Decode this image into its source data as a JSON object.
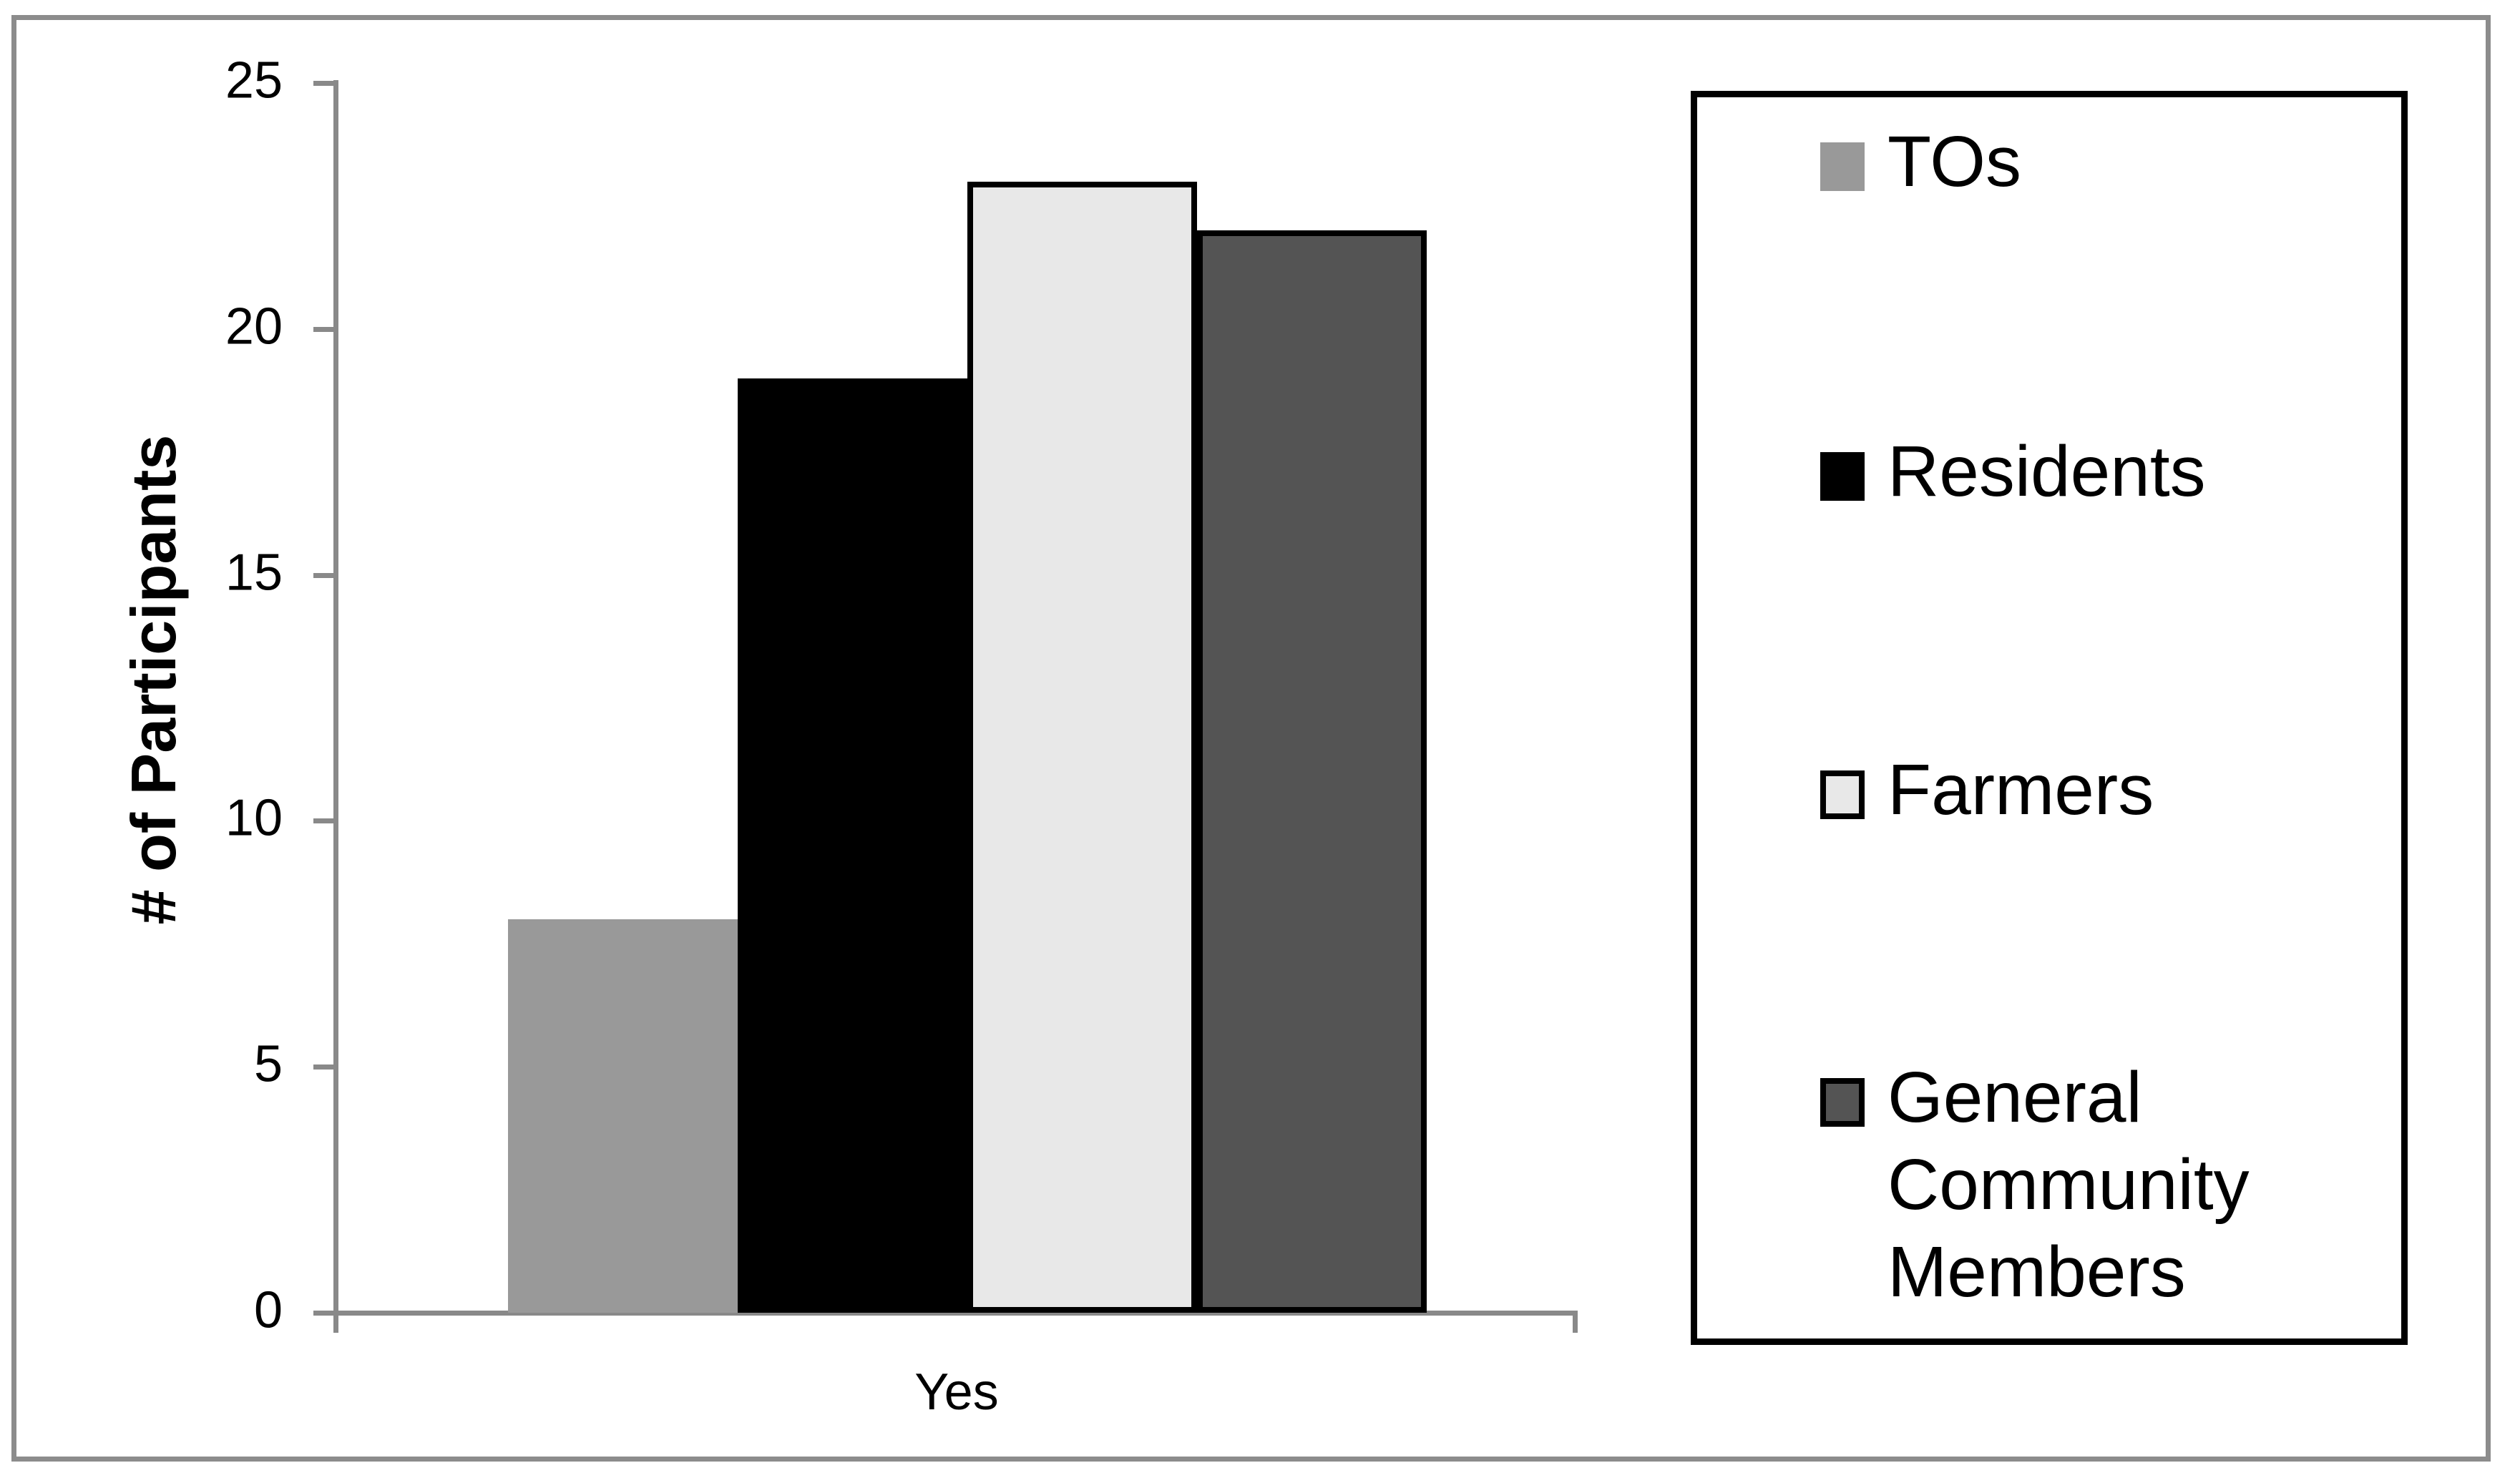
{
  "chart_data": {
    "type": "bar",
    "categories": [
      "Yes"
    ],
    "series": [
      {
        "name": "TOs",
        "values": [
          8
        ],
        "color": "#999999",
        "border": "none"
      },
      {
        "name": "Residents",
        "values": [
          19
        ],
        "color": "#000000",
        "border": "none"
      },
      {
        "name": "Farmers",
        "values": [
          23
        ],
        "color": "#e8e8e8",
        "border": "#000000"
      },
      {
        "name": "General Community Members",
        "values": [
          22
        ],
        "color": "#545454",
        "border": "#000000"
      }
    ],
    "title": "",
    "xlabel": "",
    "ylabel": "# of Participants",
    "ylim": [
      0,
      25
    ],
    "yticks": [
      0,
      5,
      10,
      15,
      20,
      25
    ],
    "grid": false,
    "legend_position": "right"
  },
  "axes": {
    "ylabel": "# of Participants",
    "category_label": "Yes",
    "tick_labels": [
      "0",
      "5",
      "10",
      "15",
      "20",
      "25"
    ]
  },
  "legend": {
    "items": [
      {
        "label": "TOs",
        "color": "#999999",
        "border": "none"
      },
      {
        "label": "Residents",
        "color": "#000000",
        "border": "none"
      },
      {
        "label": "Farmers",
        "color": "#e8e8e8",
        "border": "#000000"
      },
      {
        "label": "General Community Members",
        "color": "#545454",
        "border": "#000000"
      }
    ]
  },
  "colors": {
    "axis": "#898989",
    "outer_border": "#8c8c8c",
    "legend_border": "#000000",
    "text": "#000000",
    "background": "#ffffff"
  }
}
